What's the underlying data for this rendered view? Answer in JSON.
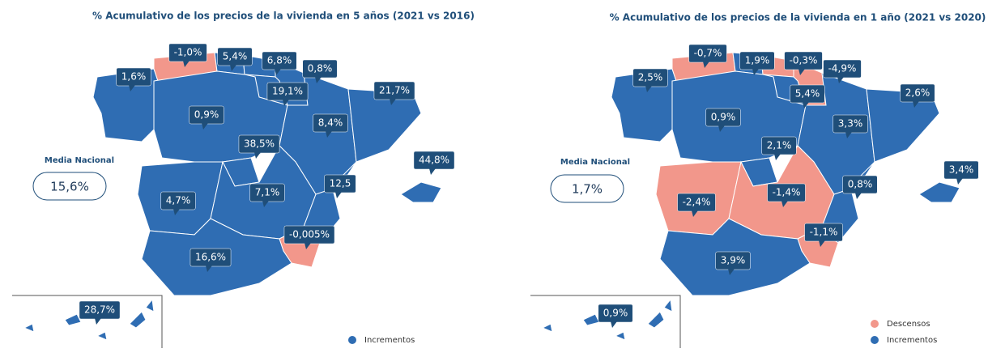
{
  "maps": [
    {
      "title": "% Acumulativo de los precios de la vivienda en 5 años (2021 vs 2016)",
      "national_label": "Media Nacional",
      "national_value": "15,6%",
      "regions": [
        {
          "label": "1,6%",
          "color": "#2f6db3"
        },
        {
          "label": "-1,0%",
          "color": "#f2978b"
        },
        {
          "label": "5,4%",
          "color": "#2f6db3"
        },
        {
          "label": "6,8%",
          "color": "#2f6db3"
        },
        {
          "label": "0,8%",
          "color": "#2f6db3"
        },
        {
          "label": "19,1%",
          "color": "#2f6db3"
        },
        {
          "label": "0,9%",
          "color": "#2f6db3"
        },
        {
          "label": "38,5%",
          "color": "#2f6db3"
        },
        {
          "label": "8,4%",
          "color": "#2f6db3"
        },
        {
          "label": "21,7%",
          "color": "#2f6db3"
        },
        {
          "label": "4,7%",
          "color": "#2f6db3"
        },
        {
          "label": "7,1%",
          "color": "#2f6db3"
        },
        {
          "label": "12,5",
          "color": "#2f6db3"
        },
        {
          "label": "-0,005%",
          "color": "#f2978b"
        },
        {
          "label": "16,6%",
          "color": "#2f6db3"
        },
        {
          "label": "44,8%",
          "color": "#2f6db3"
        },
        {
          "label": "28,7%",
          "color": "#2f6db3"
        }
      ],
      "legend": [
        {
          "label": "Incrementos",
          "color": "#2f6db3"
        }
      ]
    },
    {
      "title": "% Acumulativo de los precios de la vivienda en 1 año (2021 vs 2020)",
      "national_label": "Media Nacional",
      "national_value": "1,7%",
      "regions": [
        {
          "label": "2,5%",
          "color": "#2f6db3"
        },
        {
          "label": "-0,7%",
          "color": "#f2978b"
        },
        {
          "label": "1,9%",
          "color": "#2f6db3"
        },
        {
          "label": "-0,3%",
          "color": "#f2978b"
        },
        {
          "label": "-4,9%",
          "color": "#f2978b"
        },
        {
          "label": "5,4%",
          "color": "#2f6db3"
        },
        {
          "label": "0,9%",
          "color": "#2f6db3"
        },
        {
          "label": "2,1%",
          "color": "#2f6db3"
        },
        {
          "label": "3,3%",
          "color": "#2f6db3"
        },
        {
          "label": "2,6%",
          "color": "#2f6db3"
        },
        {
          "label": "-2,4%",
          "color": "#f2978b"
        },
        {
          "label": "-1,4%",
          "color": "#f2978b"
        },
        {
          "label": "0,8%",
          "color": "#2f6db3"
        },
        {
          "label": "-1,1%",
          "color": "#f2978b"
        },
        {
          "label": "3,9%",
          "color": "#2f6db3"
        },
        {
          "label": "3,4%",
          "color": "#2f6db3"
        },
        {
          "label": "0,9%",
          "color": "#2f6db3"
        }
      ],
      "legend": [
        {
          "label": "Descensos",
          "color": "#f2978b"
        },
        {
          "label": "Incrementos",
          "color": "#2f6db3"
        }
      ]
    }
  ]
}
